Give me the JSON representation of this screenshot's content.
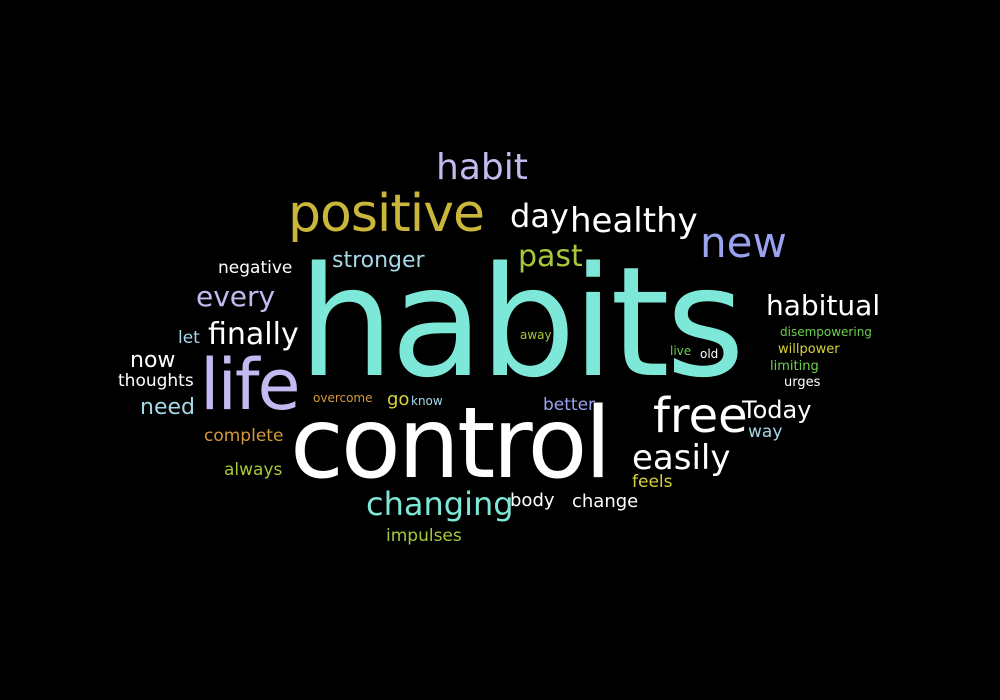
{
  "words": [
    {
      "text": "habits",
      "color": "#7ee8d8"
    },
    {
      "text": "control",
      "color": "#ffffff"
    },
    {
      "text": "life",
      "color": "#c4b9f0"
    },
    {
      "text": "positive",
      "color": "#c9b63a"
    },
    {
      "text": "habit",
      "color": "#c4b9f0"
    },
    {
      "text": "day",
      "color": "#ffffff"
    },
    {
      "text": "healthy",
      "color": "#ffffff"
    },
    {
      "text": "new",
      "color": "#9aa3ee"
    },
    {
      "text": "past",
      "color": "#a6c83a"
    },
    {
      "text": "stronger",
      "color": "#a6d8e8"
    },
    {
      "text": "negative",
      "color": "#ffffff"
    },
    {
      "text": "every",
      "color": "#c4b9f0"
    },
    {
      "text": "habitual",
      "color": "#ffffff"
    },
    {
      "text": "let",
      "color": "#a6d8e8"
    },
    {
      "text": "finally",
      "color": "#ffffff"
    },
    {
      "text": "disempowering",
      "color": "#6fcf4f"
    },
    {
      "text": "away",
      "color": "#a6c83a"
    },
    {
      "text": "now",
      "color": "#ffffff"
    },
    {
      "text": "live",
      "color": "#6fcf4f"
    },
    {
      "text": "old",
      "color": "#ffffff"
    },
    {
      "text": "willpower",
      "color": "#d6d23a"
    },
    {
      "text": "thoughts",
      "color": "#ffffff"
    },
    {
      "text": "limiting",
      "color": "#6fcf4f"
    },
    {
      "text": "urges",
      "color": "#ffffff"
    },
    {
      "text": "overcome",
      "color": "#d69a3a"
    },
    {
      "text": "go",
      "color": "#d6d23a"
    },
    {
      "text": "know",
      "color": "#a6d8e8"
    },
    {
      "text": "need",
      "color": "#a6d8e8"
    },
    {
      "text": "better",
      "color": "#9aa3ee"
    },
    {
      "text": "free",
      "color": "#ffffff"
    },
    {
      "text": "Today",
      "color": "#ffffff"
    },
    {
      "text": "way",
      "color": "#a6d8e8"
    },
    {
      "text": "complete",
      "color": "#d69a3a"
    },
    {
      "text": "easily",
      "color": "#ffffff"
    },
    {
      "text": "always",
      "color": "#a6c83a"
    },
    {
      "text": "feels",
      "color": "#d6d23a"
    },
    {
      "text": "changing",
      "color": "#7ee8d8"
    },
    {
      "text": "body",
      "color": "#ffffff"
    },
    {
      "text": "change",
      "color": "#ffffff"
    },
    {
      "text": "impulses",
      "color": "#a6c83a"
    }
  ]
}
